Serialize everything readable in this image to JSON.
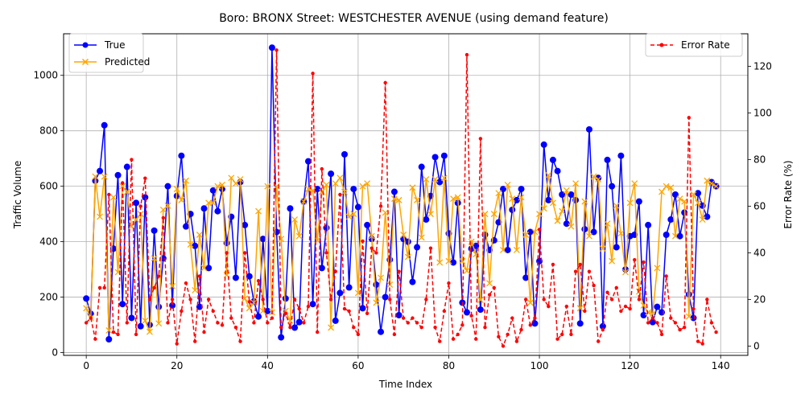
{
  "chart_data": {
    "type": "line",
    "title": "Boro: BRONX Street: WESTCHESTER AVENUE (using demand feature)",
    "xlabel": "Time Index",
    "ylabel": "Traffic Volume",
    "y2label": "Error Rate (%)",
    "xlim": [
      -5,
      146
    ],
    "ylim": [
      -10,
      1150
    ],
    "y2lim": [
      -4,
      134
    ],
    "xticks": [
      0,
      20,
      40,
      60,
      80,
      100,
      120,
      140
    ],
    "yticks": [
      0,
      200,
      400,
      600,
      800,
      1000
    ],
    "y2ticks": [
      0,
      20,
      40,
      60,
      80,
      100,
      120
    ],
    "grid": true,
    "legend_left": {
      "placement": "upper-left",
      "entries": [
        "True",
        "Predicted"
      ]
    },
    "legend_right": {
      "placement": "upper-right",
      "entries": [
        "Error Rate"
      ]
    },
    "series": [
      {
        "name": "True",
        "axis": "left",
        "color": "#0000ff",
        "marker": "circle",
        "values": [
          195,
          140,
          620,
          655,
          820,
          48,
          375,
          640,
          175,
          670,
          125,
          540,
          95,
          560,
          100,
          440,
          165,
          340,
          600,
          170,
          565,
          710,
          455,
          500,
          385,
          165,
          520,
          305,
          585,
          510,
          590,
          395,
          490,
          270,
          615,
          460,
          275,
          185,
          130,
          410,
          150,
          1100,
          435,
          55,
          195,
          520,
          90,
          110,
          545,
          690,
          175,
          590,
          305,
          450,
          645,
          115,
          215,
          715,
          235,
          590,
          525,
          160,
          460,
          410,
          245,
          75,
          200,
          335,
          580,
          135,
          410,
          400,
          255,
          380,
          670,
          480,
          565,
          705,
          615,
          710,
          430,
          325,
          540,
          180,
          145,
          375,
          385,
          155,
          425,
          370,
          405,
          470,
          590,
          370,
          515,
          550,
          590,
          270,
          435,
          105,
          330,
          750,
          550,
          695,
          655,
          570,
          465,
          570,
          550,
          105,
          445,
          805,
          435,
          630,
          95,
          695,
          600,
          380,
          710,
          300,
          420,
          425,
          545,
          135,
          460,
          110,
          165,
          145,
          425,
          480,
          570,
          420,
          505,
          210,
          125,
          575,
          530,
          490,
          615,
          600
        ]
      },
      {
        "name": "Predicted",
        "axis": "left",
        "color": "#ffa500",
        "marker": "x",
        "values": [
          160,
          125,
          635,
          490,
          635,
          80,
          560,
          290,
          600,
          580,
          455,
          480,
          500,
          115,
          75,
          340,
          105,
          515,
          530,
          240,
          590,
          550,
          620,
          390,
          225,
          425,
          305,
          540,
          540,
          600,
          605,
          280,
          630,
          610,
          625,
          195,
          160,
          180,
          510,
          150,
          600,
          145,
          600,
          410,
          150,
          115,
          480,
          420,
          545,
          590,
          585,
          405,
          580,
          605,
          90,
          610,
          630,
          580,
          490,
          500,
          215,
          600,
          610,
          420,
          180,
          270,
          505,
          245,
          555,
          550,
          425,
          345,
          595,
          550,
          415,
          625,
          500,
          625,
          325,
          630,
          330,
          555,
          560,
          330,
          295,
          400,
          355,
          190,
          500,
          250,
          500,
          575,
          370,
          605,
          555,
          370,
          560,
          425,
          180,
          435,
          500,
          520,
          640,
          540,
          475,
          510,
          585,
          455,
          610,
          160,
          545,
          420,
          635,
          625,
          375,
          465,
          330,
          530,
          430,
          290,
          540,
          610,
          220,
          170,
          145,
          140,
          305,
          580,
          600,
          595,
          420,
          555,
          545,
          130,
          570,
          540,
          480,
          620,
          610,
          600
        ]
      },
      {
        "name": "Error Rate",
        "axis": "right",
        "color": "#ff0000",
        "marker": "dot",
        "linestyle": "dashed",
        "values": [
          10,
          12,
          3,
          25,
          25,
          65,
          6,
          5,
          70,
          10,
          80,
          5,
          60,
          72,
          20,
          25,
          30,
          55,
          10,
          20,
          1,
          15,
          27,
          20,
          2,
          30,
          6,
          20,
          15,
          10,
          9,
          40,
          12,
          8,
          2,
          40,
          19,
          10,
          28,
          20,
          10,
          12,
          127,
          8,
          14,
          8,
          20,
          16,
          10,
          17,
          117,
          6,
          76,
          40,
          20,
          32,
          65,
          16,
          15,
          8,
          5,
          45,
          14,
          42,
          40,
          60,
          113,
          20,
          5,
          32,
          12,
          10,
          12,
          10,
          8,
          20,
          42,
          8,
          2,
          15,
          27,
          3,
          5,
          9,
          125,
          13,
          3,
          89,
          8,
          22,
          25,
          4,
          0,
          5,
          12,
          2,
          7,
          20,
          9,
          12,
          50,
          20,
          17,
          35,
          3,
          5,
          17,
          5,
          32,
          35,
          15,
          32,
          26,
          2,
          7,
          23,
          20,
          25,
          15,
          17,
          16,
          37,
          20,
          36,
          10,
          12,
          10,
          5,
          30,
          12,
          10,
          7,
          8,
          98,
          16,
          2,
          1,
          20,
          10,
          6
        ]
      }
    ]
  }
}
